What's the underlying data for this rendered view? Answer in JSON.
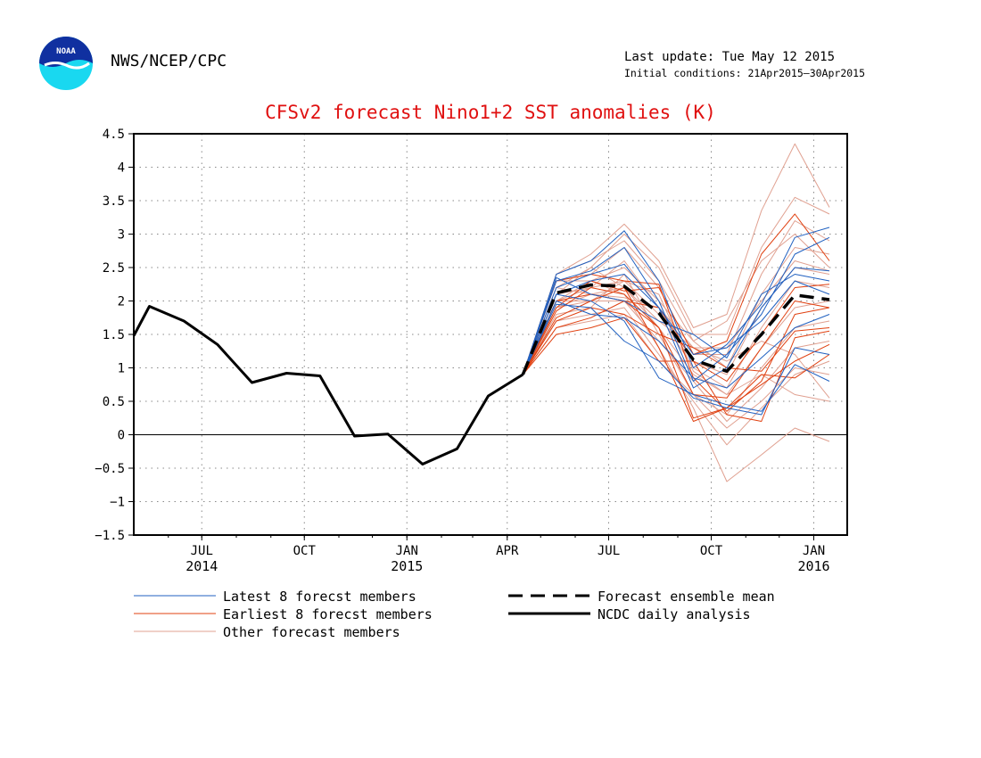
{
  "header": {
    "logo_text": "NOAA",
    "org": "NWS/NCEP/CPC",
    "last_update": "Last update: Tue May 12 2015",
    "initial_conditions": "Initial conditions: 21Apr2015–30Apr2015"
  },
  "colors": {
    "latest": "#2060c0",
    "earliest": "#e04010",
    "other": "#e0a090",
    "mean": "#000000",
    "analysis": "#000000",
    "title": "#e01010"
  },
  "chart_data": {
    "type": "line",
    "title": "CFSv2 forecast Nino1+2 SST anomalies (K)",
    "xlabel": "",
    "ylabel": "",
    "xlim": [
      "2014-05-01",
      "2016-01-31"
    ],
    "ylim": [
      -1.5,
      4.5
    ],
    "yticks": [
      -1.5,
      -1,
      -0.5,
      0,
      0.5,
      1,
      1.5,
      2,
      2.5,
      3,
      3.5,
      4,
      4.5
    ],
    "ytick_labels": [
      "−1.5",
      "−1",
      "−0.5",
      "0",
      "0.5",
      "1",
      "1.5",
      "2",
      "2.5",
      "3",
      "3.5",
      "4",
      "4.5"
    ],
    "xticks": [
      {
        "date": "2014-07-01",
        "label": "JUL",
        "year": "2014"
      },
      {
        "date": "2014-10-01",
        "label": "OCT",
        "year": ""
      },
      {
        "date": "2015-01-01",
        "label": "JAN",
        "year": "2015"
      },
      {
        "date": "2015-04-01",
        "label": "APR",
        "year": ""
      },
      {
        "date": "2015-07-01",
        "label": "JUL",
        "year": ""
      },
      {
        "date": "2015-10-01",
        "label": "OCT",
        "year": ""
      },
      {
        "date": "2016-01-01",
        "label": "JAN",
        "year": "2016"
      }
    ],
    "grid": true,
    "zero_line": true,
    "legend": {
      "position": "bottom",
      "entries": [
        {
          "label": "Latest 8 forecst members",
          "style": "latest"
        },
        {
          "label": "Earliest 8 forecst members",
          "style": "earliest"
        },
        {
          "label": "Other forecast members",
          "style": "other"
        },
        {
          "label": "Forecast ensemble mean",
          "style": "mean"
        },
        {
          "label": "NCDC daily analysis",
          "style": "analysis"
        }
      ]
    },
    "analysis": {
      "name": "NCDC daily analysis",
      "x": [
        "2014-05-01",
        "2014-05-15",
        "2014-06-15",
        "2014-07-15",
        "2014-08-15",
        "2014-09-15",
        "2014-10-15",
        "2014-11-15",
        "2014-12-15",
        "2015-01-15",
        "2015-02-15",
        "2015-03-15",
        "2015-04-15"
      ],
      "y": [
        1.48,
        1.92,
        1.7,
        1.35,
        0.78,
        0.92,
        0.88,
        -0.02,
        0.01,
        -0.44,
        -0.21,
        0.58,
        0.9
      ]
    },
    "forecast_x": [
      "2015-04-15",
      "2015-05-15",
      "2015-06-15",
      "2015-07-15",
      "2015-08-15",
      "2015-09-15",
      "2015-10-15",
      "2015-11-15",
      "2015-12-15",
      "2016-01-15"
    ],
    "mean": {
      "name": "Forecast ensemble mean",
      "y": [
        0.9,
        2.12,
        2.24,
        2.22,
        1.82,
        1.12,
        0.95,
        1.5,
        2.09,
        2.02
      ]
    },
    "latest_members": [
      [
        0.9,
        2.4,
        2.6,
        3.05,
        2.3,
        1.0,
        1.35,
        1.95,
        2.95,
        3.1
      ],
      [
        0.9,
        2.3,
        2.45,
        2.8,
        2.0,
        0.8,
        1.2,
        1.8,
        2.7,
        2.95
      ],
      [
        0.9,
        2.2,
        2.4,
        2.55,
        1.9,
        0.7,
        1.0,
        1.9,
        2.5,
        2.45
      ],
      [
        0.9,
        2.1,
        2.3,
        2.4,
        1.9,
        1.2,
        1.3,
        1.7,
        2.3,
        2.1
      ],
      [
        0.9,
        2.0,
        1.8,
        1.75,
        1.4,
        0.85,
        0.7,
        1.15,
        1.6,
        1.8
      ],
      [
        0.9,
        2.1,
        2.0,
        1.7,
        0.85,
        0.6,
        0.45,
        0.35,
        1.05,
        0.8
      ],
      [
        0.9,
        1.95,
        1.9,
        1.4,
        1.1,
        0.55,
        0.4,
        0.3,
        1.3,
        1.2
      ],
      [
        0.9,
        2.35,
        2.1,
        2.0,
        1.7,
        1.5,
        1.15,
        2.1,
        2.4,
        2.3
      ]
    ],
    "earliest_members": [
      [
        0.9,
        1.9,
        2.3,
        2.15,
        2.2,
        1.2,
        1.4,
        2.7,
        3.3,
        2.6
      ],
      [
        0.9,
        2.0,
        2.1,
        2.0,
        1.9,
        1.1,
        0.8,
        1.5,
        2.2,
        2.25
      ],
      [
        0.9,
        1.85,
        2.2,
        2.1,
        1.6,
        0.6,
        0.55,
        1.3,
        2.0,
        1.9
      ],
      [
        0.9,
        1.7,
        1.9,
        1.8,
        1.5,
        1.3,
        1.0,
        0.95,
        1.55,
        1.6
      ],
      [
        0.9,
        1.6,
        1.75,
        2.0,
        1.6,
        0.25,
        0.4,
        0.75,
        1.1,
        1.35
      ],
      [
        0.9,
        1.5,
        1.6,
        1.75,
        1.1,
        1.1,
        0.3,
        0.2,
        1.45,
        1.55
      ],
      [
        0.9,
        2.3,
        2.4,
        2.3,
        2.25,
        0.85,
        0.35,
        0.8,
        1.8,
        1.9
      ],
      [
        0.9,
        1.75,
        2.0,
        2.2,
        1.3,
        0.2,
        0.4,
        0.9,
        0.85,
        1.2
      ]
    ],
    "other_members": [
      [
        0.9,
        2.4,
        2.7,
        3.15,
        2.6,
        1.6,
        1.8,
        3.35,
        4.35,
        3.4
      ],
      [
        0.9,
        2.2,
        2.5,
        3.0,
        2.5,
        1.5,
        1.5,
        2.8,
        3.55,
        3.3
      ],
      [
        0.9,
        2.3,
        2.4,
        2.8,
        2.2,
        1.2,
        1.2,
        2.4,
        3.2,
        2.9
      ],
      [
        0.9,
        2.0,
        2.3,
        2.5,
        2.0,
        1.4,
        1.0,
        2.1,
        2.8,
        2.7
      ],
      [
        0.9,
        2.1,
        2.2,
        2.6,
        1.9,
        1.1,
        0.9,
        1.9,
        2.5,
        2.4
      ],
      [
        0.9,
        1.9,
        2.0,
        2.3,
        1.8,
        1.0,
        0.7,
        1.6,
        2.3,
        2.2
      ],
      [
        0.9,
        2.2,
        2.1,
        2.2,
        1.6,
        0.9,
        0.6,
        1.3,
        1.9,
        2.0
      ],
      [
        0.9,
        1.8,
        1.9,
        2.4,
        1.5,
        0.6,
        0.3,
        1.0,
        1.6,
        1.7
      ],
      [
        0.9,
        2.0,
        2.0,
        2.0,
        1.4,
        0.8,
        0.2,
        0.7,
        1.3,
        1.4
      ],
      [
        0.9,
        1.7,
        1.8,
        1.9,
        1.2,
        0.5,
        -0.15,
        0.4,
        0.9,
        1.1
      ],
      [
        0.9,
        2.3,
        2.3,
        2.1,
        1.3,
        0.4,
        -0.7,
        -0.3,
        0.1,
        -0.1
      ],
      [
        0.9,
        1.6,
        1.7,
        1.8,
        1.1,
        0.6,
        0.1,
        0.5,
        1.0,
        0.9
      ],
      [
        0.9,
        2.1,
        2.5,
        2.2,
        1.7,
        1.3,
        1.1,
        1.4,
        1.2,
        0.55
      ],
      [
        0.9,
        2.4,
        2.6,
        2.9,
        2.3,
        1.4,
        1.7,
        2.6,
        3.0,
        2.5
      ],
      [
        0.9,
        2.0,
        2.2,
        2.3,
        2.1,
        0.95,
        0.6,
        0.9,
        0.6,
        0.5
      ],
      [
        0.9,
        1.9,
        2.1,
        2.05,
        1.9,
        1.3,
        1.3,
        2.0,
        2.6,
        2.45
      ]
    ]
  }
}
